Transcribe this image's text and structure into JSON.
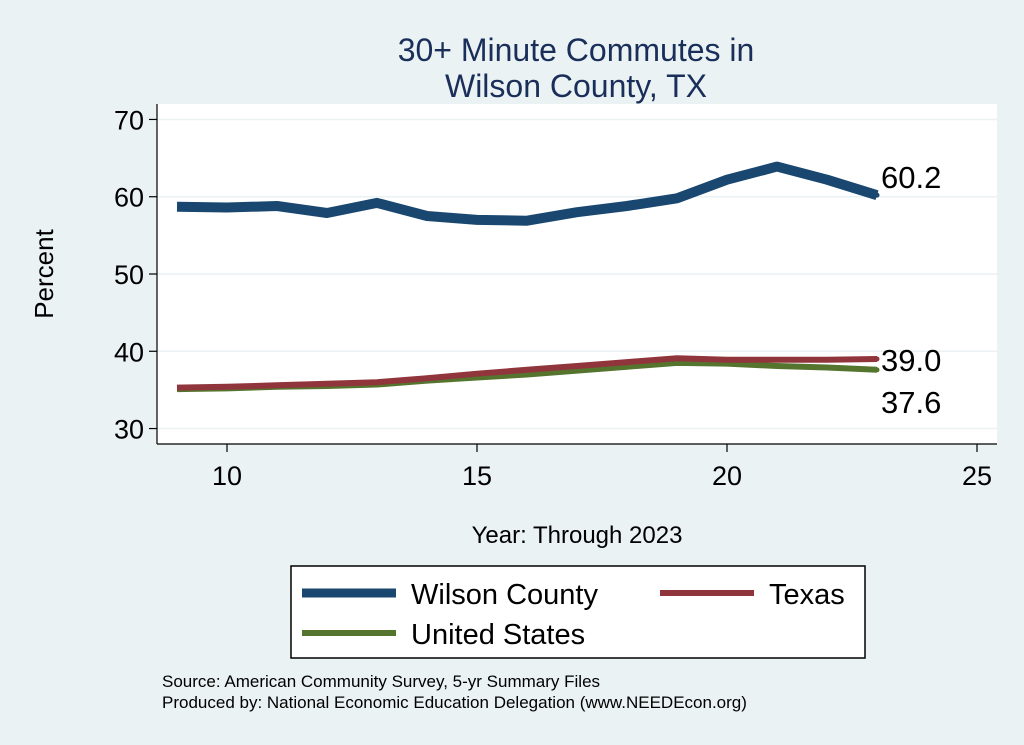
{
  "chart_data": {
    "type": "line",
    "title": [
      "30+ Minute Commutes in",
      "Wilson County, TX"
    ],
    "xlabel": "Year: Through 2023",
    "ylabel": "Percent",
    "xlim": [
      8.6,
      25.4
    ],
    "ylim": [
      28,
      72
    ],
    "xticks": [
      10,
      15,
      20,
      25
    ],
    "yticks": [
      30,
      40,
      50,
      60,
      70
    ],
    "grid": "horizontal",
    "x": [
      9,
      10,
      11,
      12,
      13,
      14,
      15,
      16,
      17,
      18,
      19,
      20,
      21,
      22,
      23
    ],
    "series": [
      {
        "name": "Wilson County",
        "color": "#1a476f",
        "values": [
          58.7,
          58.6,
          58.8,
          57.9,
          59.2,
          57.5,
          57.0,
          56.9,
          58.0,
          58.8,
          59.8,
          62.2,
          63.9,
          62.2,
          60.2
        ],
        "end_label": "60.2"
      },
      {
        "name": "Texas",
        "color": "#90353b",
        "values": [
          35.3,
          35.4,
          35.6,
          35.8,
          36.0,
          36.5,
          37.1,
          37.6,
          38.1,
          38.6,
          39.1,
          38.9,
          38.9,
          38.9,
          39.0
        ],
        "end_label": "39.0"
      },
      {
        "name": "United States",
        "color": "#55752f",
        "values": [
          35.1,
          35.2,
          35.4,
          35.5,
          35.7,
          36.2,
          36.6,
          37.0,
          37.5,
          38.0,
          38.5,
          38.4,
          38.1,
          37.9,
          37.6
        ],
        "end_label": "37.6"
      }
    ],
    "legend": {
      "placement": "bottom",
      "entries": [
        "Wilson County",
        "Texas",
        "United States"
      ]
    },
    "notes": [
      "Source: American Community Survey, 5-yr Summary Files",
      "Produced by: National Economic Education Delegation (www.NEEDEcon.org)"
    ]
  }
}
